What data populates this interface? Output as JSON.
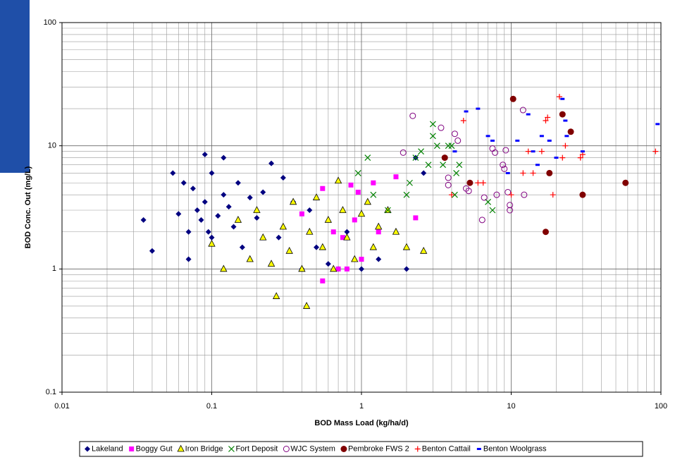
{
  "chart_data": {
    "type": "scatter",
    "xlabel": "BOD Mass Load (kg/ha/d)",
    "ylabel": "BOD Conc. Out (mg/L)",
    "xlim": [
      0.01,
      100
    ],
    "ylim": [
      0.1,
      100
    ],
    "xticks": [
      0.01,
      0.1,
      1,
      10,
      100
    ],
    "yticks": [
      0.1,
      1,
      10,
      100
    ],
    "xscale": "log",
    "yscale": "log",
    "grid": true,
    "minor_grid": true,
    "legend": "bottom",
    "series": [
      {
        "name": "Lakeland",
        "color": "#000080",
        "marker": "diamond",
        "x": [
          0.035,
          0.04,
          0.055,
          0.06,
          0.065,
          0.07,
          0.07,
          0.075,
          0.08,
          0.085,
          0.09,
          0.09,
          0.095,
          0.1,
          0.1,
          0.11,
          0.12,
          0.12,
          0.13,
          0.14,
          0.15,
          0.16,
          0.18,
          0.2,
          0.22,
          0.25,
          0.28,
          0.3,
          0.35,
          0.4,
          0.45,
          0.5,
          0.6,
          0.7,
          0.8,
          1,
          1.3,
          2,
          2.3,
          2.6
        ],
        "values": [
          2.5,
          1.4,
          6,
          2.8,
          5,
          2,
          1.2,
          4.5,
          3,
          2.5,
          8.5,
          3.5,
          2,
          6,
          1.8,
          2.7,
          8,
          4,
          3.2,
          2.2,
          5,
          1.5,
          3.8,
          2.6,
          4.2,
          7.2,
          1.8,
          5.5,
          3.5,
          1,
          3,
          1.5,
          1.1,
          1,
          2,
          1,
          1.2,
          1,
          8,
          6
        ]
      },
      {
        "name": "Boggy Gut",
        "color": "#ff00ff",
        "marker": "square",
        "x": [
          0.4,
          0.55,
          0.55,
          0.65,
          0.7,
          0.75,
          0.8,
          0.85,
          0.9,
          0.95,
          1,
          1.2,
          1.3,
          1.7,
          2.3
        ],
        "values": [
          2.8,
          4.5,
          0.8,
          2,
          1,
          1.8,
          1,
          4.8,
          2.5,
          4.2,
          1.2,
          5,
          2,
          5.6,
          2.6
        ]
      },
      {
        "name": "Iron Bridge",
        "color": "#ffff00",
        "marker": "triangle",
        "x": [
          0.1,
          0.12,
          0.15,
          0.18,
          0.2,
          0.22,
          0.25,
          0.27,
          0.3,
          0.33,
          0.35,
          0.4,
          0.43,
          0.45,
          0.5,
          0.55,
          0.6,
          0.65,
          0.7,
          0.75,
          0.8,
          0.9,
          1,
          1.1,
          1.2,
          1.3,
          1.5,
          1.7,
          2,
          2.6
        ],
        "values": [
          1.6,
          1,
          2.5,
          1.2,
          3,
          1.8,
          1.1,
          0.6,
          2.2,
          1.4,
          3.5,
          1,
          0.5,
          2,
          3.8,
          1.5,
          2.5,
          1,
          5.2,
          3,
          1.8,
          1.2,
          2.8,
          3.5,
          1.5,
          2.2,
          3,
          2,
          1.5,
          1.4
        ]
      },
      {
        "name": "Fort Deposit",
        "color": "#008000",
        "marker": "x",
        "x": [
          0.95,
          1.1,
          1.2,
          1.5,
          2,
          2.1,
          2.3,
          2.5,
          2.8,
          3,
          3,
          3.2,
          3.5,
          3.8,
          4,
          4.2,
          4.3,
          4.5,
          7.5,
          7
        ],
        "values": [
          6,
          8,
          4,
          3,
          4,
          5,
          8,
          9,
          7,
          15,
          12,
          10,
          7,
          10,
          10,
          4,
          6,
          7,
          3,
          3.5
        ]
      },
      {
        "name": "WJC System",
        "color": "#800080",
        "marker": "open-circle",
        "x": [
          1.9,
          2.2,
          3.4,
          3.8,
          3.8,
          4.2,
          4.4,
          5,
          5.2,
          6.4,
          6.6,
          7.5,
          7.8,
          8,
          8.8,
          9,
          9.2,
          9.5,
          9.8,
          9.8,
          12,
          12.2
        ],
        "values": [
          8.8,
          17.5,
          14,
          5.5,
          4.8,
          12.5,
          11,
          4.5,
          4.3,
          2.5,
          3.8,
          9.5,
          8.8,
          4,
          7,
          6.5,
          9.2,
          4.2,
          3.3,
          3,
          19.5,
          4
        ]
      },
      {
        "name": "Pembroke FWS 2",
        "color": "#800000",
        "marker": "circle",
        "x": [
          3.6,
          5.3,
          10.3,
          17,
          18,
          22,
          25,
          30,
          58
        ],
        "values": [
          8,
          5,
          24,
          2,
          6,
          18,
          13,
          4,
          5
        ]
      },
      {
        "name": "Benton Cattail",
        "color": "#ff0000",
        "marker": "plus",
        "x": [
          4,
          4.8,
          6,
          6.5,
          10,
          12,
          13,
          14,
          16,
          17,
          17.5,
          19,
          21,
          22,
          23,
          29,
          30,
          92
        ],
        "values": [
          4,
          16,
          5,
          5,
          4,
          6,
          9,
          6,
          9,
          16,
          17,
          4,
          25,
          8,
          10,
          8,
          8.5,
          9
        ]
      },
      {
        "name": "Benton Woolgrass",
        "color": "#0000ff",
        "marker": "dash",
        "x": [
          4.2,
          5,
          6,
          7,
          7.5,
          9.5,
          11,
          13,
          14,
          15,
          16,
          18,
          20,
          22,
          23,
          23.5,
          30,
          95
        ],
        "values": [
          9,
          19,
          20,
          12,
          11,
          6,
          11,
          18,
          9,
          7,
          12,
          11,
          8,
          24,
          16,
          12,
          9,
          15
        ]
      }
    ]
  }
}
